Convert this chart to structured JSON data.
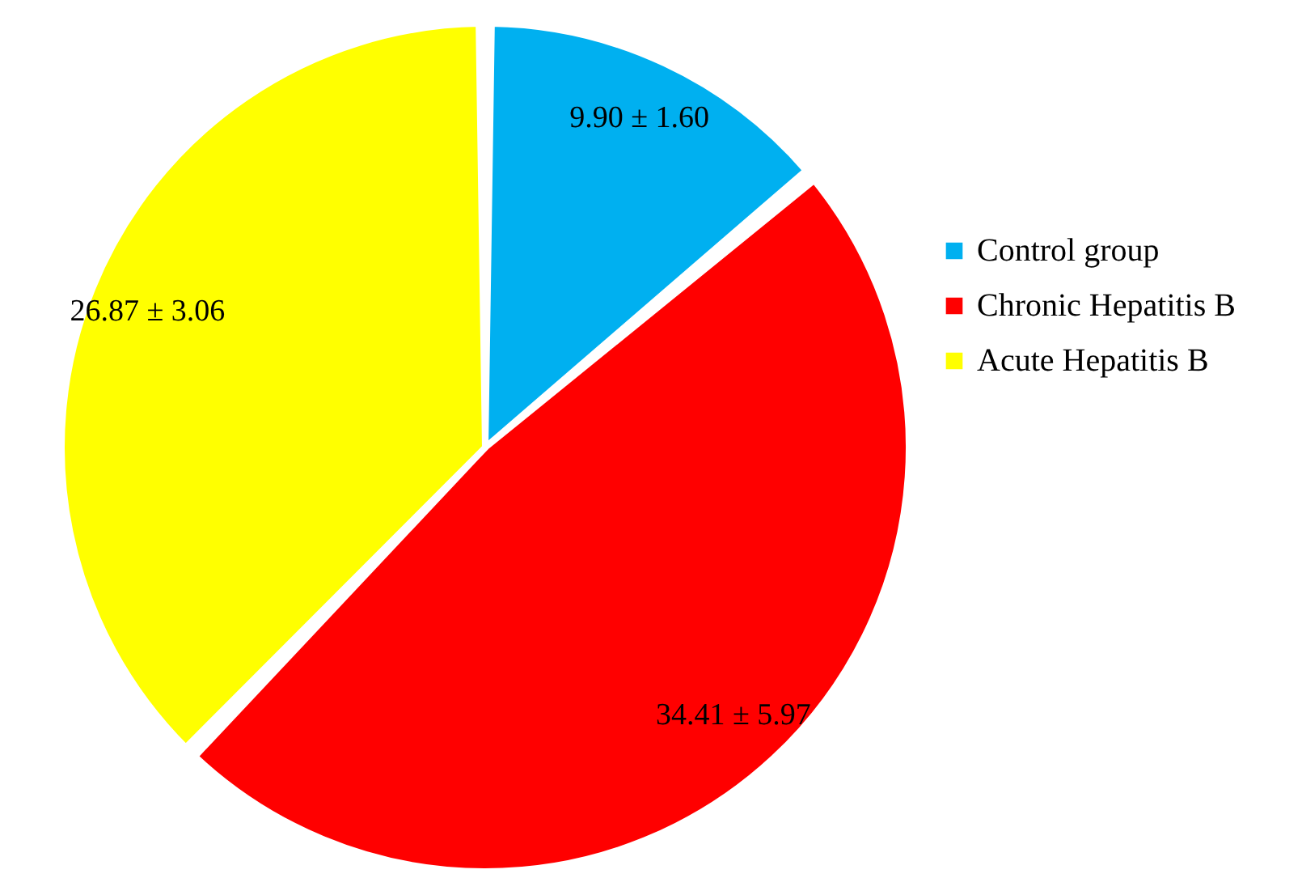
{
  "chart_data": {
    "type": "pie",
    "categories": [
      "Control group",
      "Chronic Hepatitis B",
      "Acute Hepatitis B"
    ],
    "values": [
      9.9,
      34.41,
      26.87
    ],
    "colors": [
      "#00b0f0",
      "#ff0000",
      "#ffff00"
    ],
    "value_labels": [
      "9.90 ± 1.60",
      "34.41 ± 5.97",
      "26.87 ± 3.06"
    ],
    "legend": "right"
  }
}
